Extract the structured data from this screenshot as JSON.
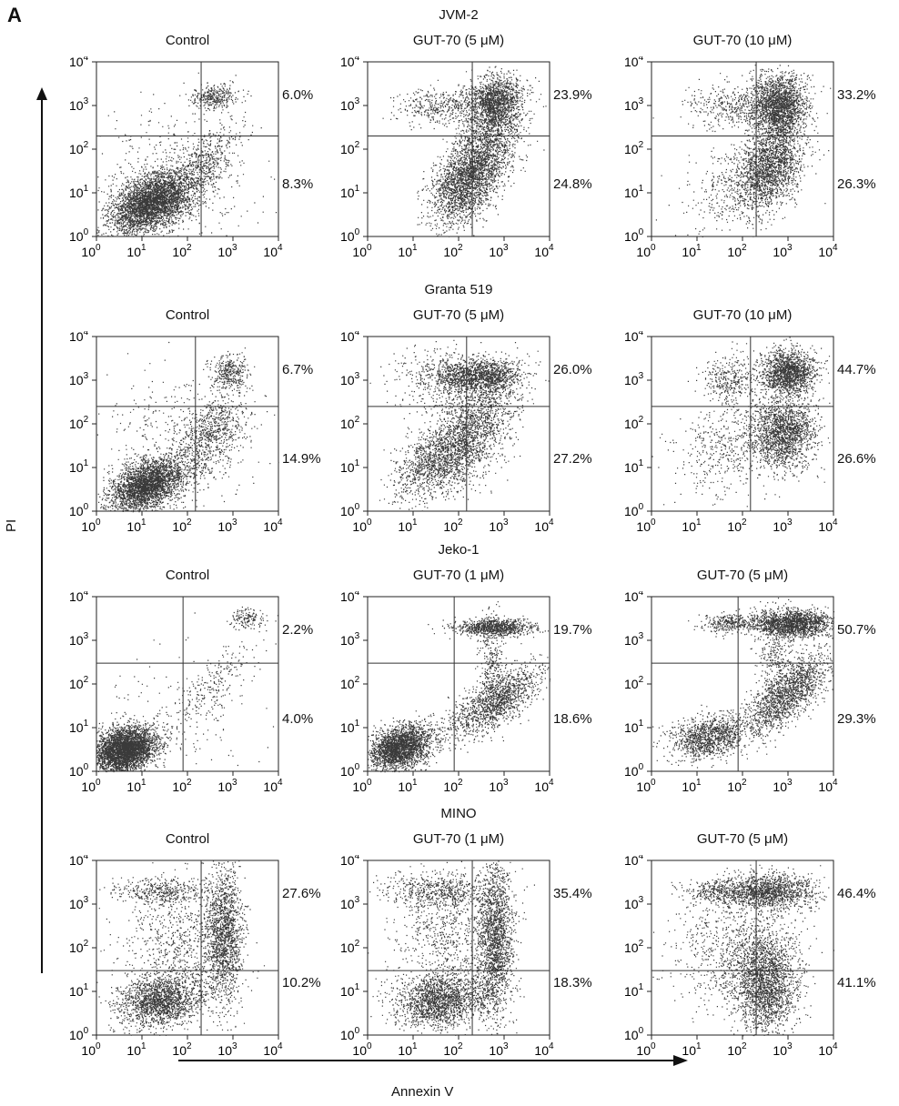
{
  "panel_label": "A",
  "axis_labels": {
    "y": "PI",
    "x": "Annexin V"
  },
  "chart_data": [
    {
      "type": "scatter",
      "group": "JVM-2",
      "title": "Control",
      "ylabel": "PI",
      "xlabel": "Annexin V",
      "xscale": "log",
      "yscale": "log",
      "xlim": [
        1,
        10000
      ],
      "ylim": [
        1,
        10000
      ],
      "xticks": [
        "10",
        "10",
        "10",
        "10",
        "10"
      ],
      "xtick_exp": [
        "0",
        "1",
        "2",
        "3",
        "4"
      ],
      "quadrant_gate": {
        "x": 200,
        "y": 200
      },
      "upper_right_pct": "6.0%",
      "lower_right_pct": "8.3%"
    },
    {
      "type": "scatter",
      "group": "JVM-2",
      "title": "GUT-70 (5 μM)",
      "xscale": "log",
      "yscale": "log",
      "xlim": [
        1,
        10000
      ],
      "ylim": [
        1,
        10000
      ],
      "quadrant_gate": {
        "x": 200,
        "y": 200
      },
      "upper_right_pct": "23.9%",
      "lower_right_pct": "24.8%"
    },
    {
      "type": "scatter",
      "group": "JVM-2",
      "title": "GUT-70 (10 μM)",
      "xscale": "log",
      "yscale": "log",
      "xlim": [
        1,
        10000
      ],
      "ylim": [
        1,
        10000
      ],
      "quadrant_gate": {
        "x": 200,
        "y": 200
      },
      "upper_right_pct": "33.2%",
      "lower_right_pct": "26.3%"
    },
    {
      "type": "scatter",
      "group": "Granta 519",
      "title": "Control",
      "xscale": "log",
      "yscale": "log",
      "xlim": [
        1,
        10000
      ],
      "ylim": [
        1,
        10000
      ],
      "quadrant_gate": {
        "x": 150,
        "y": 250
      },
      "upper_right_pct": "6.7%",
      "lower_right_pct": "14.9%"
    },
    {
      "type": "scatter",
      "group": "Granta 519",
      "title": "GUT-70 (5 μM)",
      "xscale": "log",
      "yscale": "log",
      "xlim": [
        1,
        10000
      ],
      "ylim": [
        1,
        10000
      ],
      "quadrant_gate": {
        "x": 150,
        "y": 250
      },
      "upper_right_pct": "26.0%",
      "lower_right_pct": "27.2%"
    },
    {
      "type": "scatter",
      "group": "Granta 519",
      "title": "GUT-70 (10 μM)",
      "xscale": "log",
      "yscale": "log",
      "xlim": [
        1,
        10000
      ],
      "ylim": [
        1,
        10000
      ],
      "quadrant_gate": {
        "x": 150,
        "y": 250
      },
      "upper_right_pct": "44.7%",
      "lower_right_pct": "26.6%"
    },
    {
      "type": "scatter",
      "group": "Jeko-1",
      "title": "Control",
      "xscale": "log",
      "yscale": "log",
      "xlim": [
        1,
        10000
      ],
      "ylim": [
        1,
        10000
      ],
      "quadrant_gate": {
        "x": 80,
        "y": 300
      },
      "upper_right_pct": "2.2%",
      "lower_right_pct": "4.0%"
    },
    {
      "type": "scatter",
      "group": "Jeko-1",
      "title": "GUT-70 (1 μM)",
      "xscale": "log",
      "yscale": "log",
      "xlim": [
        1,
        10000
      ],
      "ylim": [
        1,
        10000
      ],
      "quadrant_gate": {
        "x": 80,
        "y": 300
      },
      "upper_right_pct": "19.7%",
      "lower_right_pct": "18.6%"
    },
    {
      "type": "scatter",
      "group": "Jeko-1",
      "title": "GUT-70 (5 μM)",
      "xscale": "log",
      "yscale": "log",
      "xlim": [
        1,
        10000
      ],
      "ylim": [
        1,
        10000
      ],
      "quadrant_gate": {
        "x": 80,
        "y": 300
      },
      "upper_right_pct": "50.7%",
      "lower_right_pct": "29.3%"
    },
    {
      "type": "scatter",
      "group": "MINO",
      "title": "Control",
      "xscale": "log",
      "yscale": "log",
      "xlim": [
        1,
        10000
      ],
      "ylim": [
        1,
        10000
      ],
      "quadrant_gate": {
        "x": 200,
        "y": 30
      },
      "upper_right_pct": "27.6%",
      "lower_right_pct": "10.2%"
    },
    {
      "type": "scatter",
      "group": "MINO",
      "title": "GUT-70 (1 μM)",
      "xscale": "log",
      "yscale": "log",
      "xlim": [
        1,
        10000
      ],
      "ylim": [
        1,
        10000
      ],
      "quadrant_gate": {
        "x": 200,
        "y": 30
      },
      "upper_right_pct": "35.4%",
      "lower_right_pct": "18.3%"
    },
    {
      "type": "scatter",
      "group": "MINO",
      "title": "GUT-70 (5 μM)",
      "xscale": "log",
      "yscale": "log",
      "xlim": [
        1,
        10000
      ],
      "ylim": [
        1,
        10000
      ],
      "quadrant_gate": {
        "x": 200,
        "y": 30
      },
      "upper_right_pct": "46.4%",
      "lower_right_pct": "41.1%"
    }
  ],
  "tick_base": "10",
  "tick_exponents": [
    "0",
    "1",
    "2",
    "3",
    "4"
  ]
}
